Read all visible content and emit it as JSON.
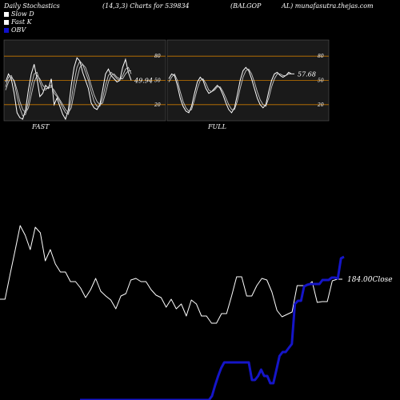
{
  "header": {
    "left": "Daily Stochastics",
    "params": "(14,3,3) Charts for 539834",
    "ticker_a": "(BALGOP",
    "ticker_b": "AL) munafasutra.thejas.com"
  },
  "legend": [
    {
      "label": "Slow  D",
      "color": "#ffffff"
    },
    {
      "label": "Fast K",
      "color": "#ffffff"
    },
    {
      "label": "OBV",
      "color": "#1010cc"
    }
  ],
  "colors": {
    "panel_bg": "#1a1a1a",
    "level_line": "#c87800",
    "obv": "#1515c8",
    "price": "#ffffff"
  },
  "chart_data": [
    {
      "type": "line",
      "title": "FAST",
      "ylim": [
        0,
        100
      ],
      "levels": [
        20,
        50,
        80
      ],
      "tick_labels": [
        "80",
        "50",
        "20"
      ],
      "last_value_label": "49.94",
      "series": [
        {
          "name": "Fast K",
          "values": [
            48,
            58,
            52,
            34,
            10,
            4,
            2,
            14,
            38,
            58,
            70,
            52,
            30,
            34,
            44,
            40,
            52,
            20,
            28,
            18,
            8,
            2,
            14,
            44,
            66,
            78,
            74,
            60,
            50,
            40,
            22,
            16,
            14,
            20,
            38,
            58,
            64,
            56,
            52,
            48,
            50,
            66,
            76,
            60,
            50
          ]
        },
        {
          "values": [
            42,
            54,
            56,
            48,
            30,
            16,
            6,
            8,
            24,
            44,
            58,
            60,
            48,
            38,
            38,
            42,
            44,
            34,
            30,
            24,
            16,
            10,
            8,
            26,
            48,
            66,
            74,
            70,
            60,
            50,
            36,
            24,
            18,
            18,
            28,
            44,
            56,
            60,
            56,
            52,
            50,
            56,
            64,
            66,
            58
          ]
        },
        {
          "values": [
            38,
            48,
            54,
            50,
            38,
            24,
            14,
            10,
            16,
            32,
            48,
            56,
            52,
            44,
            40,
            40,
            42,
            38,
            32,
            26,
            20,
            14,
            10,
            16,
            34,
            52,
            66,
            70,
            66,
            56,
            44,
            32,
            24,
            20,
            22,
            34,
            48,
            56,
            58,
            54,
            52,
            52,
            58,
            62,
            62
          ]
        }
      ]
    },
    {
      "type": "line",
      "title": "FULL",
      "ylim": [
        0,
        100
      ],
      "levels": [
        20,
        50,
        80
      ],
      "tick_labels": [
        "80",
        "50",
        "20"
      ],
      "last_value_label": "57.68",
      "series": [
        {
          "values": [
            52,
            58,
            56,
            44,
            28,
            18,
            12,
            10,
            18,
            34,
            48,
            54,
            50,
            40,
            34,
            36,
            40,
            44,
            40,
            32,
            22,
            14,
            10,
            16,
            32,
            50,
            62,
            66,
            62,
            52,
            40,
            28,
            20,
            16,
            20,
            36,
            50,
            58,
            60,
            56,
            54,
            56,
            60,
            58,
            58
          ]
        },
        {
          "values": [
            48,
            54,
            58,
            50,
            36,
            24,
            16,
            12,
            14,
            26,
            40,
            50,
            52,
            46,
            38,
            36,
            38,
            42,
            42,
            36,
            28,
            20,
            14,
            14,
            24,
            40,
            54,
            62,
            64,
            58,
            48,
            36,
            26,
            20,
            18,
            28,
            42,
            52,
            58,
            58,
            56,
            56,
            58,
            58,
            58
          ]
        }
      ]
    },
    {
      "type": "line",
      "last_value_label": "184.00Close",
      "series": [
        {
          "name": "Close",
          "values": [
            374,
            374,
            343,
            313,
            282,
            294,
            312,
            284,
            291,
            326,
            312,
            330,
            340,
            340,
            352,
            352,
            360,
            372,
            362,
            348,
            364,
            370,
            375,
            386,
            370,
            367,
            350,
            348,
            352,
            352,
            362,
            369,
            372,
            384,
            374,
            386,
            380,
            395,
            375,
            380,
            395,
            395,
            404,
            404,
            392,
            392,
            370,
            346,
            346,
            370,
            370,
            357,
            348,
            350,
            365,
            388,
            396,
            393,
            390,
            357,
            357,
            357,
            352,
            378,
            377,
            377,
            351,
            349,
            349
          ]
        },
        {
          "name": "OBV",
          "values": [
            500,
            500,
            500,
            500,
            500,
            500,
            500,
            500,
            500,
            500,
            500,
            500,
            500,
            500,
            500,
            500,
            500,
            500,
            500,
            500,
            500,
            500,
            500,
            500,
            500,
            500,
            500,
            500,
            500,
            500,
            500,
            500,
            500,
            500,
            500,
            500,
            500,
            500,
            500,
            500,
            500,
            500,
            500,
            495,
            482,
            470,
            460,
            453,
            453,
            453,
            453,
            453,
            453,
            453,
            453,
            453,
            475,
            475,
            470,
            462,
            470,
            470,
            479,
            479,
            462,
            445,
            440,
            440,
            435,
            430,
            380,
            376,
            376,
            358,
            356,
            355,
            355,
            355,
            355,
            350,
            350,
            350,
            347,
            347,
            348,
            323,
            321
          ]
        }
      ]
    }
  ]
}
